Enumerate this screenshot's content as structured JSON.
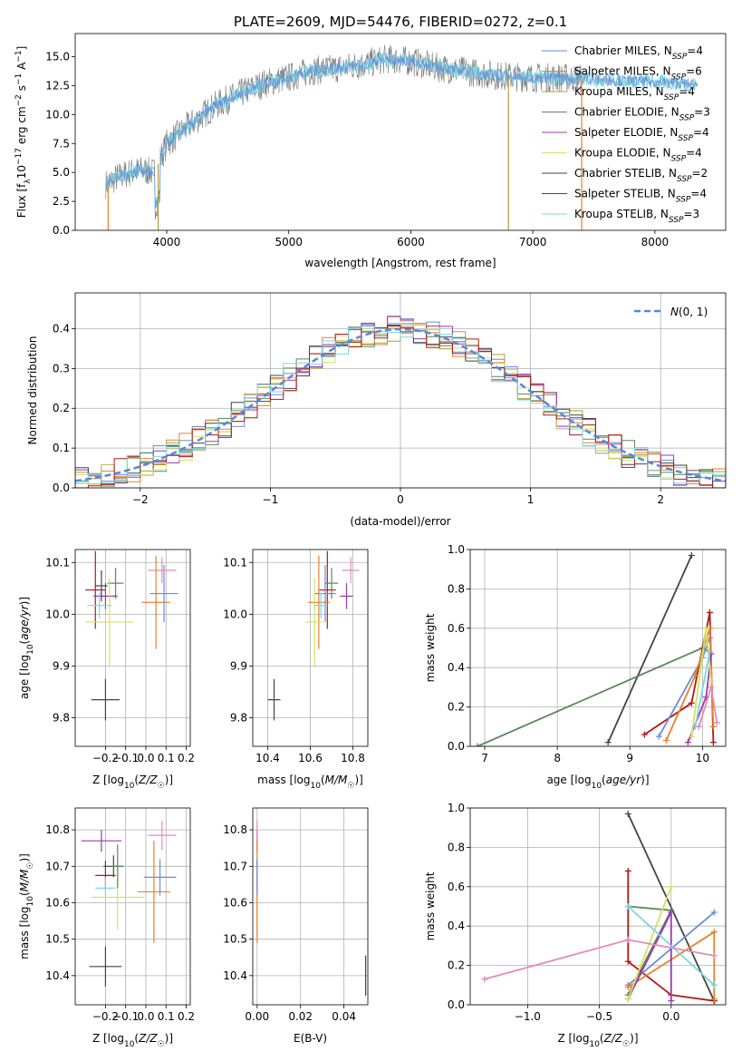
{
  "figure_title": "PLATE=2609, MJD=54476, FIBERID=0272, z=0.1",
  "chart_data": [
    {
      "id": "spectrum",
      "type": "line",
      "title": "PLATE=2609, MJD=54476, FIBERID=0272, z=0.1",
      "xlabel": "wavelength [Angstrom, rest frame]",
      "ylabel": "Flux [f_λ 10^-17 erg cm^-2 s^-1 A^-1]",
      "xlim": [
        3250,
        8580
      ],
      "ylim": [
        0,
        17
      ],
      "xticks": [
        4000,
        5000,
        6000,
        7000,
        8000
      ],
      "yticks": [
        0.0,
        2.5,
        5.0,
        7.5,
        10.0,
        12.5,
        15.0
      ],
      "grid": false,
      "legend_position": "right",
      "observed_color": "#777777",
      "continuum": {
        "x": [
          3500,
          3600,
          3700,
          3800,
          3900,
          4000,
          4200,
          4400,
          4600,
          4800,
          5000,
          5200,
          5400,
          5600,
          5800,
          6000,
          6200,
          6400,
          6600,
          6800,
          7000,
          7200,
          7400,
          7600,
          7800,
          8000,
          8200,
          8350
        ],
        "y": [
          4.0,
          4.6,
          5.0,
          5.2,
          5.0,
          7.5,
          9.2,
          10.8,
          11.8,
          12.7,
          13.2,
          13.8,
          14.0,
          14.3,
          14.8,
          14.6,
          14.1,
          13.8,
          13.5,
          13.3,
          13.2,
          13.2,
          13.1,
          13.0,
          12.9,
          12.8,
          12.7,
          12.6
        ]
      },
      "series": [
        {
          "name": "Chabrier MILES, N_SSP=4",
          "color": "#6a8ed8"
        },
        {
          "name": "Salpeter MILES, N_SSP=6",
          "color": "#e8822a"
        },
        {
          "name": "Kroupa MILES, N_SSP=4",
          "color": "#b89b3a"
        },
        {
          "name": "Chabrier ELODIE, N_SSP=3",
          "color": "#5a8a5a"
        },
        {
          "name": "Salpeter ELODIE, N_SSP=4",
          "color": "#9a3ab0"
        },
        {
          "name": "Kroupa ELODIE, N_SSP=4",
          "color": "#d8e060"
        },
        {
          "name": "Chabrier STELIB, N_SSP=2",
          "color": "#444444"
        },
        {
          "name": "Salpeter STELIB, N_SSP=4",
          "color": "#b01818"
        },
        {
          "name": "Kroupa STELIB, N_SSP=3",
          "color": "#7ad8e0"
        }
      ],
      "legend_labels": [
        {
          "base": "Chabrier MILES, N",
          "sub": "SSP",
          "tail": "=4"
        },
        {
          "base": "Salpeter MILES, N",
          "sub": "SSP",
          "tail": "=6"
        },
        {
          "base": "Kroupa MILES, N",
          "sub": "SSP",
          "tail": "=4"
        },
        {
          "base": "Chabrier ELODIE, N",
          "sub": "SSP",
          "tail": "=3"
        },
        {
          "base": "Salpeter ELODIE, N",
          "sub": "SSP",
          "tail": "=4"
        },
        {
          "base": "Kroupa ELODIE, N",
          "sub": "SSP",
          "tail": "=4"
        },
        {
          "base": "Chabrier STELIB, N",
          "sub": "SSP",
          "tail": "=2"
        },
        {
          "base": "Salpeter STELIB, N",
          "sub": "SSP",
          "tail": "=4"
        },
        {
          "base": "Kroupa STELIB, N",
          "sub": "SSP",
          "tail": "=3"
        }
      ],
      "spikes": [
        {
          "x": 3520,
          "color": "#e8822a"
        },
        {
          "x": 3930,
          "color": "#b89b3a"
        },
        {
          "x": 6800,
          "color": "#b89b3a"
        },
        {
          "x": 7400,
          "color": "#e8822a"
        }
      ]
    },
    {
      "id": "residuals",
      "type": "histogram",
      "xlabel": "(data-model)/error",
      "ylabel": "Normed distribution",
      "xlim": [
        -2.5,
        2.5
      ],
      "ylim": [
        0,
        0.49
      ],
      "xticks": [
        -2,
        -1,
        0,
        1,
        2
      ],
      "yticks": [
        0.0,
        0.1,
        0.2,
        0.3,
        0.4
      ],
      "grid": true,
      "legend": "N(0,1)",
      "gaussian_color": "#5588dd",
      "bin_width": 0.1
    },
    {
      "id": "age_vs_Z",
      "type": "scatter",
      "xlabel": "Z [log10(Z/Z☉)]",
      "ylabel": "age [log10(age/yr)]",
      "xlim": [
        -0.35,
        0.22
      ],
      "ylim": [
        9.745,
        10.125
      ],
      "xticks": [
        -0.2,
        -0.1,
        0.0,
        0.1,
        0.2
      ],
      "yticks": [
        9.8,
        9.9,
        10.0,
        10.1
      ],
      "grid": true,
      "points": [
        {
          "x": -0.25,
          "y": 10.047,
          "dx": 0.05,
          "dy": 0.075,
          "color": "#b01818"
        },
        {
          "x": -0.2,
          "y": 10.035,
          "dx": 0.06,
          "dy": 0.025,
          "color": "#9a3ab0"
        },
        {
          "x": -0.15,
          "y": 10.06,
          "dx": 0.04,
          "dy": 0.03,
          "color": "#5a8a5a"
        },
        {
          "x": -0.23,
          "y": 10.017,
          "dx": 0.06,
          "dy": 0.025,
          "color": "#7ad8e0"
        },
        {
          "x": -0.18,
          "y": 9.985,
          "dx": 0.12,
          "dy": 0.085,
          "color": "#d8e060"
        },
        {
          "x": 0.05,
          "y": 10.023,
          "dx": 0.07,
          "dy": 0.09,
          "color": "#e8822a"
        },
        {
          "x": 0.09,
          "y": 10.04,
          "dx": 0.07,
          "dy": 0.055,
          "color": "#6a8ed8"
        },
        {
          "x": 0.08,
          "y": 10.085,
          "dx": 0.07,
          "dy": 0.025,
          "color": "#e88ab8"
        },
        {
          "x": -0.22,
          "y": 10.055,
          "dx": 0.03,
          "dy": 0.03,
          "color": "#444444"
        }
      ],
      "typical_error": {
        "x": -0.2,
        "y": 9.835,
        "dx": 0.07,
        "dy": 0.04,
        "color": "#444444"
      }
    },
    {
      "id": "age_vs_mass",
      "type": "scatter",
      "xlabel": "mass [log10(M/M☉)]",
      "ylabel": "",
      "xlim": [
        10.33,
        10.87
      ],
      "ylim": [
        9.745,
        10.125
      ],
      "xticks": [
        10.4,
        10.6,
        10.8
      ],
      "yticks": [
        9.8,
        9.9,
        10.0,
        10.1
      ],
      "grid": true,
      "points": [
        {
          "x": 10.77,
          "y": 10.035,
          "dx": 0.03,
          "dy": 0.025,
          "color": "#9a3ab0"
        },
        {
          "x": 10.68,
          "y": 10.047,
          "dx": 0.04,
          "dy": 0.075,
          "color": "#b01818"
        },
        {
          "x": 10.64,
          "y": 10.023,
          "dx": 0.05,
          "dy": 0.09,
          "color": "#e8822a"
        },
        {
          "x": 10.67,
          "y": 10.04,
          "dx": 0.05,
          "dy": 0.055,
          "color": "#6a8ed8"
        },
        {
          "x": 10.79,
          "y": 10.085,
          "dx": 0.04,
          "dy": 0.025,
          "color": "#e88ab8"
        },
        {
          "x": 10.62,
          "y": 9.985,
          "dx": 0.04,
          "dy": 0.085,
          "color": "#d8e060"
        },
        {
          "x": 10.7,
          "y": 10.06,
          "dx": 0.03,
          "dy": 0.03,
          "color": "#5a8a5a"
        },
        {
          "x": 10.65,
          "y": 10.017,
          "dx": 0.03,
          "dy": 0.025,
          "color": "#7ad8e0"
        }
      ],
      "typical_error": {
        "x": 10.43,
        "y": 9.835,
        "dx": 0.03,
        "dy": 0.04,
        "color": "#444444"
      }
    },
    {
      "id": "weight_vs_age",
      "type": "line",
      "xlabel": "age [log10(age/yr)]",
      "ylabel": "mass weight",
      "xlim": [
        6.8,
        10.32
      ],
      "ylim": [
        0,
        1.0
      ],
      "xticks": [
        7,
        8,
        9,
        10
      ],
      "yticks": [
        0.0,
        0.2,
        0.4,
        0.6,
        0.8,
        1.0
      ],
      "grid": true,
      "series": [
        {
          "color": "#444444",
          "x": [
            8.7,
            9.85
          ],
          "y": [
            0.02,
            0.97
          ]
        },
        {
          "color": "#5a8a5a",
          "x": [
            6.9,
            10.0,
            10.1
          ],
          "y": [
            0.0,
            0.5,
            0.48
          ]
        },
        {
          "color": "#b01818",
          "x": [
            9.2,
            9.85,
            10.1,
            10.15
          ],
          "y": [
            0.06,
            0.22,
            0.68,
            0.02
          ]
        },
        {
          "color": "#6a8ed8",
          "x": [
            9.4,
            10.0,
            10.1
          ],
          "y": [
            0.05,
            0.45,
            0.55
          ]
        },
        {
          "color": "#e8822a",
          "x": [
            9.5,
            9.9,
            10.1,
            10.15
          ],
          "y": [
            0.03,
            0.36,
            0.6,
            0.1
          ]
        },
        {
          "color": "#9a3ab0",
          "x": [
            9.8,
            10.05,
            10.12
          ],
          "y": [
            0.02,
            0.25,
            0.47
          ]
        },
        {
          "color": "#d8e060",
          "x": [
            9.85,
            10.05,
            10.12
          ],
          "y": [
            0.05,
            0.6,
            0.33
          ]
        },
        {
          "color": "#7ad8e0",
          "x": [
            9.9,
            10.1
          ],
          "y": [
            0.1,
            0.48
          ]
        },
        {
          "color": "#e88ab8",
          "x": [
            9.95,
            10.12,
            10.2
          ],
          "y": [
            0.1,
            0.3,
            0.12
          ]
        }
      ]
    },
    {
      "id": "mass_vs_Z",
      "type": "scatter",
      "xlabel": "Z [log10(Z/Z☉)]",
      "ylabel": "mass [log10(M/M☉)]",
      "xlim": [
        -0.35,
        0.22
      ],
      "ylim": [
        10.32,
        10.86
      ],
      "xticks": [
        -0.2,
        -0.1,
        0.0,
        0.1,
        0.2
      ],
      "yticks": [
        10.4,
        10.5,
        10.6,
        10.7,
        10.8
      ],
      "grid": true,
      "points": [
        {
          "x": -0.22,
          "y": 10.77,
          "dx": 0.1,
          "dy": 0.03,
          "color": "#9a3ab0"
        },
        {
          "x": 0.08,
          "y": 10.785,
          "dx": 0.07,
          "dy": 0.04,
          "color": "#e88ab8"
        },
        {
          "x": -0.2,
          "y": 10.675,
          "dx": 0.05,
          "dy": 0.04,
          "color": "#b01818"
        },
        {
          "x": -0.16,
          "y": 10.7,
          "dx": 0.05,
          "dy": 0.03,
          "color": "#444444"
        },
        {
          "x": -0.2,
          "y": 10.64,
          "dx": 0.05,
          "dy": 0.03,
          "color": "#7ad8e0"
        },
        {
          "x": -0.14,
          "y": 10.615,
          "dx": 0.13,
          "dy": 0.09,
          "color": "#d8e060"
        },
        {
          "x": 0.07,
          "y": 10.67,
          "dx": 0.08,
          "dy": 0.05,
          "color": "#6a8ed8"
        },
        {
          "x": 0.04,
          "y": 10.63,
          "dx": 0.08,
          "dy": 0.14,
          "color": "#e8822a"
        },
        {
          "x": -0.14,
          "y": 10.7,
          "dx": 0.03,
          "dy": 0.06,
          "color": "#5a8a5a"
        }
      ],
      "typical_error": {
        "x": -0.2,
        "y": 10.425,
        "dx": 0.08,
        "dy": 0.055,
        "color": "#444444"
      }
    },
    {
      "id": "mass_vs_EBV",
      "type": "scatter",
      "xlabel": "E(B-V)",
      "ylabel": "",
      "xlim": [
        -0.002,
        0.051
      ],
      "ylim": [
        10.32,
        10.86
      ],
      "xticks": [
        0.0,
        0.02,
        0.04
      ],
      "yticks": [
        10.4,
        10.5,
        10.6,
        10.7,
        10.8
      ],
      "grid": true,
      "points": [
        {
          "x": 0.0,
          "y": 10.77,
          "dx": 0.0,
          "dy": 0.03,
          "color": "#9a3ab0"
        },
        {
          "x": 0.0,
          "y": 10.785,
          "dx": 0.0,
          "dy": 0.04,
          "color": "#e88ab8"
        },
        {
          "x": 0.0,
          "y": 10.675,
          "dx": 0.0,
          "dy": 0.04,
          "color": "#b01818"
        },
        {
          "x": 0.0,
          "y": 10.615,
          "dx": 0.0,
          "dy": 0.09,
          "color": "#d8e060"
        },
        {
          "x": 0.0,
          "y": 10.63,
          "dx": 0.0,
          "dy": 0.14,
          "color": "#e8822a"
        },
        {
          "x": 0.0,
          "y": 10.67,
          "dx": 0.0,
          "dy": 0.05,
          "color": "#6a8ed8"
        }
      ],
      "typical_error": {
        "x": 0.05,
        "y": 10.4,
        "dx": 0.0,
        "dy": 0.055,
        "color": "#444444"
      }
    },
    {
      "id": "weight_vs_Z",
      "type": "line",
      "xlabel": "Z [log10(Z/Z☉)]",
      "ylabel": "mass weight",
      "xlim": [
        -1.4,
        0.38
      ],
      "ylim": [
        0,
        1.0
      ],
      "xticks": [
        -1.0,
        -0.5,
        0.0
      ],
      "yticks": [
        0.0,
        0.2,
        0.4,
        0.6,
        0.8,
        1.0
      ],
      "grid": true,
      "series": [
        {
          "color": "#444444",
          "x": [
            -0.3,
            0.3
          ],
          "y": [
            0.97,
            0.02
          ]
        },
        {
          "color": "#5a8a5a",
          "x": [
            -0.3,
            0.0,
            -0.3
          ],
          "y": [
            0.5,
            0.48,
            0.05
          ]
        },
        {
          "color": "#b01818",
          "x": [
            -0.3,
            -0.3,
            0.0,
            0.3
          ],
          "y": [
            0.68,
            0.22,
            0.05,
            0.02
          ]
        },
        {
          "color": "#6a8ed8",
          "x": [
            -0.3,
            0.3
          ],
          "y": [
            0.1,
            0.47
          ]
        },
        {
          "color": "#e8822a",
          "x": [
            -0.3,
            0.3,
            0.3
          ],
          "y": [
            0.09,
            0.37,
            0.03
          ]
        },
        {
          "color": "#9a3ab0",
          "x": [
            -0.3,
            0.0,
            0.0
          ],
          "y": [
            0.03,
            0.47,
            0.02
          ]
        },
        {
          "color": "#d8e060",
          "x": [
            -0.3,
            0.0
          ],
          "y": [
            0.03,
            0.6
          ]
        },
        {
          "color": "#7ad8e0",
          "x": [
            -0.3,
            0.3
          ],
          "y": [
            0.5,
            0.1
          ]
        },
        {
          "color": "#e88ab8",
          "x": [
            -1.3,
            -0.3,
            0.3
          ],
          "y": [
            0.13,
            0.33,
            0.25
          ]
        }
      ]
    }
  ]
}
